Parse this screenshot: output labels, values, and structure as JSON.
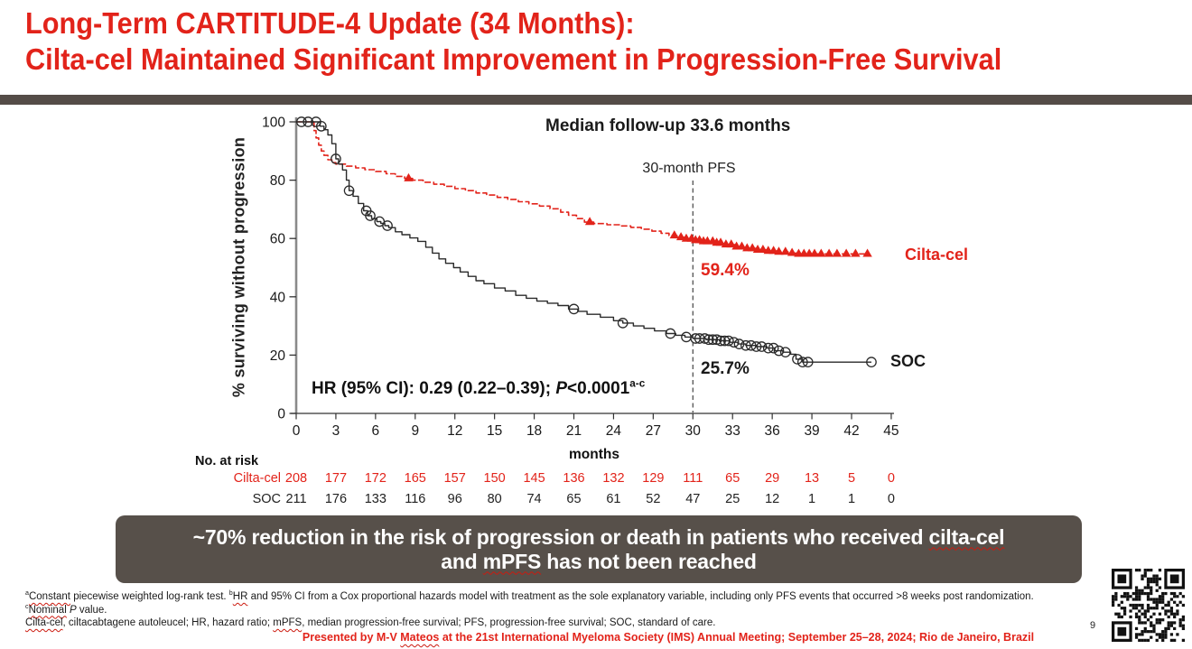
{
  "slide": {
    "title_line1": "Long-Term CARTITUDE-4 Update (34 Months):",
    "title_line2": "Cilta-cel Maintained Significant Improvement in Progression-Free Survival",
    "page_number": "9",
    "colors": {
      "accent_red": "#e2231a",
      "bar_brown": "#544c47",
      "box_brown": "#57504a"
    },
    "highlight_box": {
      "line1": [
        {
          "t": "~70% reduction in the risk of progression or death in patients who received "
        },
        {
          "t": "cilta-cel",
          "wavy": true
        }
      ],
      "line2": [
        {
          "t": "and "
        },
        {
          "t": "mPFS",
          "wavy": true
        },
        {
          "t": " has not been reached"
        }
      ]
    },
    "footnotes": [
      [
        {
          "t": "a",
          "sup": true
        },
        {
          "t": "Constant",
          "wavy": true
        },
        {
          "t": " piecewise weighted log-rank test. "
        },
        {
          "t": "b",
          "sup": true
        },
        {
          "t": "HR",
          "wavy": true
        },
        {
          "t": " and 95% CI from a Cox proportional hazards model with treatment as the sole explanatory variable, including only PFS events that occurred >8 weeks post randomization."
        }
      ],
      [
        {
          "t": "c",
          "sup": true
        },
        {
          "t": "Nominal",
          "wavy": true
        },
        {
          "t": " "
        },
        {
          "t": "P",
          "i": true
        },
        {
          "t": " value."
        }
      ],
      [
        {
          "t": "Cilta-cel",
          "wavy": true
        },
        {
          "t": ", ciltacabtagene autoleucel; HR, hazard ratio; "
        },
        {
          "t": "mPFS",
          "wavy": true
        },
        {
          "t": ", median progression-free survival; PFS, progression-free survival; SOC, standard of care."
        }
      ]
    ],
    "footer": [
      {
        "t": "Presented by M-V "
      },
      {
        "t": "Mateos",
        "wavy": true
      },
      {
        "t": " at the 21st International Myeloma Society (IMS) Annual Meeting; September 25–28, 2024; Rio de Janeiro, Brazil"
      }
    ]
  },
  "chart_data": {
    "type": "line",
    "subtype": "kaplan-meier-step",
    "title": "Median follow-up 33.6 months",
    "xlabel": "months",
    "ylabel": "% surviving without progression",
    "xlim": [
      0,
      45
    ],
    "ylim": [
      0,
      100
    ],
    "x_ticks": [
      0,
      3,
      6,
      9,
      12,
      15,
      18,
      21,
      24,
      27,
      30,
      33,
      36,
      39,
      42,
      45
    ],
    "y_ticks": [
      0,
      20,
      40,
      60,
      80,
      100
    ],
    "grid": false,
    "legend_position": "right-of-curves",
    "annotations": {
      "median_followup": "Median follow-up 33.6 months",
      "pfs_30_label": "30-month PFS",
      "pfs_30_x": 30,
      "cilta_30m_pfs": "59.4%",
      "soc_30m_pfs": "25.7%",
      "hr_text": [
        {
          "t": "HR (95% CI): 0.29 (0.22–0.39); "
        },
        {
          "t": "P",
          "i": true
        },
        {
          "t": "<0.0001"
        },
        {
          "t": "a-c",
          "sup": true
        }
      ]
    },
    "series": [
      {
        "name": "Cilta-cel",
        "color": "#e2231a",
        "marker": "triangle",
        "line_style": "dashed",
        "value_at_30_months_pct": 59.4,
        "points": [
          [
            0,
            100
          ],
          [
            1.2,
            100
          ],
          [
            1.35,
            97
          ],
          [
            1.5,
            94.5
          ],
          [
            1.7,
            92
          ],
          [
            1.9,
            90
          ],
          [
            2.1,
            88.5
          ],
          [
            2.4,
            87
          ],
          [
            2.7,
            86
          ],
          [
            3,
            85.5
          ],
          [
            3.8,
            84.8
          ],
          [
            4.5,
            84.2
          ],
          [
            5.2,
            83.6
          ],
          [
            6,
            83
          ],
          [
            6.8,
            82.2
          ],
          [
            7.5,
            81.3
          ],
          [
            8.2,
            80.6
          ],
          [
            8.8,
            80
          ],
          [
            9.6,
            79.3
          ],
          [
            10.4,
            78.6
          ],
          [
            11.2,
            77.9
          ],
          [
            12,
            77.1
          ],
          [
            12.8,
            76.4
          ],
          [
            13.6,
            75.6
          ],
          [
            14.4,
            74.9
          ],
          [
            15.2,
            74.1
          ],
          [
            16,
            73.4
          ],
          [
            16.8,
            72.6
          ],
          [
            17.6,
            71.9
          ],
          [
            18.4,
            71.1
          ],
          [
            19.2,
            70.2
          ],
          [
            20,
            69
          ],
          [
            20.6,
            68
          ],
          [
            21.2,
            66.8
          ],
          [
            21.8,
            65.6
          ],
          [
            22.5,
            65.1
          ],
          [
            23.5,
            64.7
          ],
          [
            24.5,
            64.3
          ],
          [
            25.3,
            63.8
          ],
          [
            26.1,
            63.2
          ],
          [
            26.9,
            62.5
          ],
          [
            27.6,
            61.8
          ],
          [
            28.2,
            61
          ],
          [
            28.8,
            60.4
          ],
          [
            29.4,
            59.9
          ],
          [
            30,
            59.4
          ],
          [
            30.8,
            59
          ],
          [
            31.6,
            58.5
          ],
          [
            32.4,
            57.9
          ],
          [
            33.2,
            57.2
          ],
          [
            34,
            56.6
          ],
          [
            34.8,
            56.1
          ],
          [
            35.6,
            55.7
          ],
          [
            36.4,
            55.4
          ],
          [
            37.2,
            55
          ],
          [
            37.8,
            54.7
          ],
          [
            43.3,
            54.7
          ]
        ],
        "censor_marks": [
          8.5,
          22.2,
          28.6,
          29.1,
          29.5,
          29.9,
          30.2,
          30.5,
          30.8,
          31.1,
          31.5,
          31.8,
          32.1,
          32.5,
          32.9,
          33.3,
          33.7,
          34.1,
          34.5,
          34.9,
          35.3,
          35.7,
          36.1,
          36.5,
          37,
          37.5,
          38,
          38.4,
          38.8,
          39.2,
          39.7,
          40.3,
          40.9,
          41.6,
          42.3,
          43.2
        ]
      },
      {
        "name": "SOC",
        "color": "#2a2a2a",
        "marker": "circle",
        "line_style": "solid",
        "value_at_30_months_pct": 25.7,
        "points": [
          [
            0,
            100
          ],
          [
            1.5,
            100
          ],
          [
            1.8,
            98.5
          ],
          [
            2.1,
            97.3
          ],
          [
            2.4,
            95.5
          ],
          [
            2.7,
            92.5
          ],
          [
            3,
            87.3
          ],
          [
            3.2,
            85.5
          ],
          [
            3.5,
            83.5
          ],
          [
            3.8,
            80
          ],
          [
            4,
            76.4
          ],
          [
            4.3,
            74.5
          ],
          [
            4.7,
            72
          ],
          [
            5.1,
            69.5
          ],
          [
            5.4,
            67.8
          ],
          [
            5.7,
            66.8
          ],
          [
            6.1,
            65.8
          ],
          [
            6.4,
            65.2
          ],
          [
            6.7,
            64.4
          ],
          [
            7,
            63.7
          ],
          [
            7.5,
            62.3
          ],
          [
            8,
            61.3
          ],
          [
            8.6,
            60.2
          ],
          [
            9.2,
            59
          ],
          [
            9.8,
            57
          ],
          [
            10.3,
            55
          ],
          [
            10.8,
            53
          ],
          [
            11.3,
            51.5
          ],
          [
            11.9,
            50
          ],
          [
            12.4,
            48.5
          ],
          [
            13,
            47
          ],
          [
            13.6,
            45.5
          ],
          [
            14.2,
            44.5
          ],
          [
            15,
            43
          ],
          [
            15.8,
            42
          ],
          [
            16.6,
            40.5
          ],
          [
            17.4,
            39.5
          ],
          [
            18.2,
            38.5
          ],
          [
            19,
            37.8
          ],
          [
            19.8,
            37
          ],
          [
            20.6,
            35.8
          ],
          [
            21.3,
            35
          ],
          [
            22,
            34
          ],
          [
            23,
            33
          ],
          [
            24,
            31.8
          ],
          [
            24.7,
            31
          ],
          [
            25.5,
            30
          ],
          [
            26.3,
            29.2
          ],
          [
            27.1,
            28.3
          ],
          [
            28,
            27.4
          ],
          [
            28.7,
            26.8
          ],
          [
            29.4,
            26.2
          ],
          [
            30,
            25.7
          ],
          [
            31,
            25.3
          ],
          [
            32,
            24.9
          ],
          [
            32.8,
            24.4
          ],
          [
            33.4,
            23.8
          ],
          [
            34,
            23.3
          ],
          [
            34.8,
            22.9
          ],
          [
            35.6,
            22.4
          ],
          [
            36.2,
            21.5
          ],
          [
            36.8,
            21
          ],
          [
            37.4,
            20.3
          ],
          [
            37.8,
            18.6
          ],
          [
            38.3,
            17.6
          ],
          [
            43.5,
            17.6
          ]
        ],
        "censor_marks": [
          0.4,
          0.9,
          1.5,
          1.9,
          3,
          4,
          5.3,
          5.6,
          6.3,
          6.9,
          21,
          24.7,
          28.3,
          29.5,
          30.2,
          30.5,
          30.9,
          31.2,
          31.5,
          31.8,
          32.1,
          32.4,
          32.7,
          33.1,
          33.5,
          34,
          34.4,
          34.8,
          35.2,
          35.7,
          36.1,
          36.5,
          37,
          37.9,
          38.3,
          38.7,
          43.5
        ]
      }
    ],
    "at_risk": {
      "label": "No. at risk",
      "rows": [
        {
          "name": "Cilta-cel",
          "color": "#e2231a",
          "values": [
            208,
            177,
            172,
            165,
            157,
            150,
            145,
            136,
            132,
            129,
            111,
            65,
            29,
            13,
            5,
            0
          ]
        },
        {
          "name": "SOC",
          "color": "#222222",
          "values": [
            211,
            176,
            133,
            116,
            96,
            80,
            74,
            65,
            61,
            52,
            47,
            25,
            12,
            1,
            1,
            0
          ]
        }
      ]
    }
  }
}
